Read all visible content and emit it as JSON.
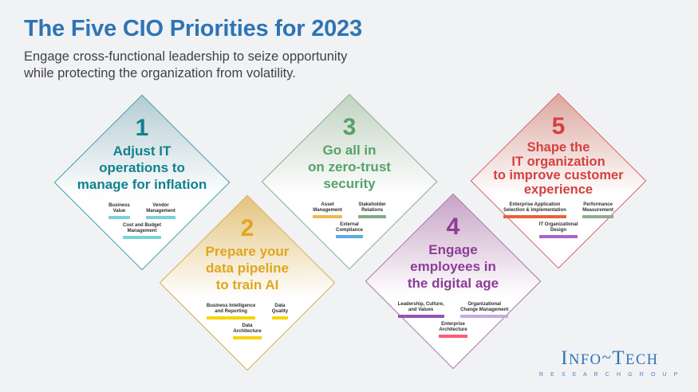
{
  "canvas": {
    "background_color": "#F0F2F4"
  },
  "header": {
    "title": "The Five CIO Priorities for 2023",
    "title_color": "#2E74B5",
    "subtitle": "Engage cross-functional leadership to seize opportunity\nwhile protecting the organization from volatility.",
    "subtitle_color": "#414142"
  },
  "diamonds": [
    {
      "number": "1",
      "title": "Adjust IT\noperations to\nmanage for inflation",
      "colors": {
        "text": "#12818F",
        "border": "#3E9DAA",
        "gradient_top": "#B4CCD3"
      },
      "topics": [
        {
          "label": "Business\nValue",
          "bar_color": "#7CD1DA"
        },
        {
          "label": "Vendor\nManagement",
          "bar_color": "#7CD1DA"
        },
        {
          "label": "Cost and Budget\nManagement",
          "bar_color": "#7CD1DA"
        }
      ]
    },
    {
      "number": "2",
      "title": "Prepare your\ndata pipeline\nto train AI",
      "colors": {
        "text": "#DFA61E",
        "border": "#D9AC4E",
        "gradient_top": "#E3C37C"
      },
      "topics": [
        {
          "label": "Business Intelligence\nand Reporting",
          "bar_color": "#F6D40A"
        },
        {
          "label": "Data\nQuality",
          "bar_color": "#F6D40A"
        },
        {
          "label": "Data\nArchitecture",
          "bar_color": "#F6D40A"
        }
      ]
    },
    {
      "number": "3",
      "title": "Go all in\non zero-trust\nsecurity",
      "colors": {
        "text": "#56A269",
        "border": "#85AE8B",
        "gradient_top": "#C2D3C3"
      },
      "topics": [
        {
          "label": "Asset\nManagement",
          "bar_color": "#EDBA4D"
        },
        {
          "label": "Stakeholder\nRelations",
          "bar_color": "#85AA87"
        },
        {
          "label": "External\nCompliance",
          "bar_color": "#58ADE0"
        }
      ]
    },
    {
      "number": "4",
      "title": "Engage\nemployees in\nthe digital age",
      "colors": {
        "text": "#8D3D96",
        "border": "#AA70A6",
        "gradient_top": "#C7A3C5"
      },
      "topics": [
        {
          "label": "Leadership, Culture,\nand Values",
          "bar_color": "#9454AF"
        },
        {
          "label": "Organizational\nChange Management",
          "bar_color": "#C7AADF"
        },
        {
          "label": "Enterprise\nArchitecture",
          "bar_color": "#FB5F74"
        }
      ]
    },
    {
      "number": "5",
      "title": "Shape the\nIT organization\nto improve customer\nexperience",
      "colors": {
        "text": "#D54040",
        "border": "#D76262",
        "gradient_top": "#DCA89F"
      },
      "topics": [
        {
          "label": "Enterprise Application\nSelection & Implementation",
          "bar_color": "#E8603F"
        },
        {
          "label": "Performance\nMeasurement",
          "bar_color": "#91AC92"
        },
        {
          "label": "IT Organizational\nDesign",
          "bar_color": "#AA63C5"
        }
      ]
    }
  ],
  "logo": {
    "part_i": "I",
    "part_nfo": "NFO",
    "tilde": "~",
    "part_t": "T",
    "part_ech": "ECH",
    "subtitle": "R E S E A R C H   G R O U P",
    "main_color": "#2E74B5",
    "sub_color": "#4A86C5"
  }
}
